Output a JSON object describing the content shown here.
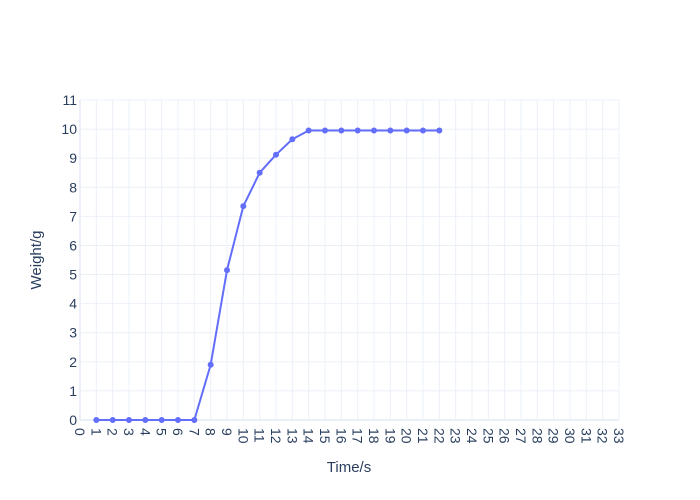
{
  "chart_data": {
    "type": "line",
    "xlabel": "Time/s",
    "ylabel": "Weight/g",
    "xlim": [
      0,
      33
    ],
    "ylim": [
      0,
      11
    ],
    "x_ticks": [
      0,
      1,
      2,
      3,
      4,
      5,
      6,
      7,
      8,
      9,
      10,
      11,
      12,
      13,
      14,
      15,
      16,
      17,
      18,
      19,
      20,
      21,
      22,
      23,
      24,
      25,
      26,
      27,
      28,
      29,
      30,
      31,
      32,
      33
    ],
    "y_ticks": [
      0,
      1,
      2,
      3,
      4,
      5,
      6,
      7,
      8,
      9,
      10,
      11
    ],
    "grid": true,
    "series": [
      {
        "color": "#636efa",
        "x": [
          1,
          2,
          3,
          4,
          5,
          6,
          7,
          8,
          9,
          10,
          11,
          12,
          13,
          14,
          15,
          16,
          17,
          18,
          19,
          20,
          21,
          22
        ],
        "y": [
          0,
          0,
          0,
          0,
          0,
          0,
          0,
          1.9,
          5.15,
          7.35,
          8.5,
          9.12,
          9.65,
          9.95,
          9.95,
          9.95,
          9.95,
          9.95,
          9.95,
          9.95,
          9.95,
          9.95
        ]
      }
    ]
  }
}
